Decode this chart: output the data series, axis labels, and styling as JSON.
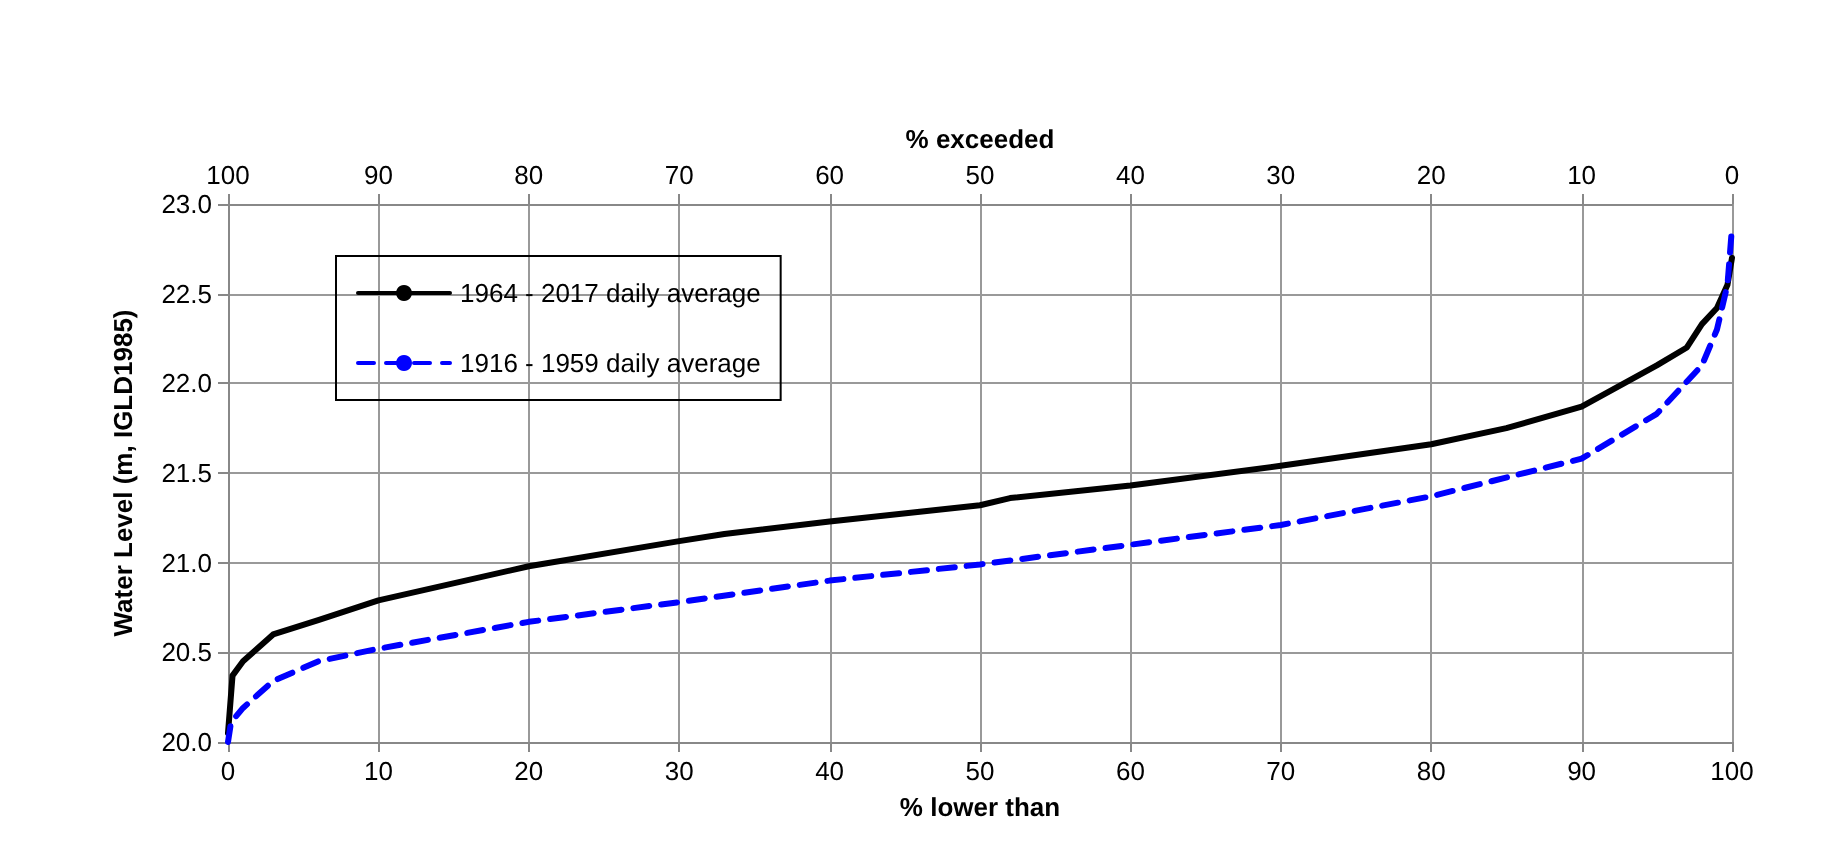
{
  "chart_data": {
    "type": "line",
    "xlabel": "% lower than",
    "x2label": "% exceeded",
    "ylabel": "Water Level (m, IGLD1985)",
    "xlim": [
      0,
      100
    ],
    "xticks": [
      0,
      10,
      20,
      30,
      40,
      50,
      60,
      70,
      80,
      90,
      100
    ],
    "x2lim": [
      100,
      0
    ],
    "x2ticks": [
      100,
      90,
      80,
      70,
      60,
      50,
      40,
      30,
      20,
      10,
      0
    ],
    "ylim": [
      20.0,
      23.0
    ],
    "yticks": [
      {
        "value": 20.0,
        "label": "20.0"
      },
      {
        "value": 20.5,
        "label": "20.5"
      },
      {
        "value": 21.0,
        "label": "21.0"
      },
      {
        "value": 21.5,
        "label": "21.5"
      },
      {
        "value": 22.0,
        "label": "22.0"
      },
      {
        "value": 22.5,
        "label": "22.5"
      },
      {
        "value": 23.0,
        "label": "23.0"
      }
    ],
    "grid": true,
    "legend": "top left",
    "marker": "none",
    "series": [
      {
        "name": "1964 - 2017 daily average",
        "color": "#000000",
        "line_style": "solid",
        "x": [
          0,
          0.3,
          1,
          3,
          6,
          10,
          20,
          30,
          33,
          40,
          50,
          52,
          60,
          70,
          80,
          85,
          90,
          95,
          97,
          98,
          99,
          99.7,
          100
        ],
        "values": [
          20.05,
          20.37,
          20.45,
          20.6,
          20.68,
          20.79,
          20.98,
          21.12,
          21.16,
          21.23,
          21.32,
          21.36,
          21.43,
          21.54,
          21.66,
          21.75,
          21.87,
          22.1,
          22.2,
          22.33,
          22.42,
          22.55,
          22.7
        ]
      },
      {
        "name": "1916 - 1959 daily average",
        "color": "#0000ff",
        "line_style": "dashed",
        "x": [
          0,
          0.2,
          1,
          3,
          6,
          10,
          20,
          30,
          40,
          50,
          60,
          70,
          80,
          90,
          95,
          98,
          99,
          99.7,
          100
        ],
        "values": [
          20.0,
          20.11,
          20.19,
          20.34,
          20.45,
          20.52,
          20.67,
          20.78,
          20.9,
          20.99,
          21.1,
          21.21,
          21.37,
          21.58,
          21.83,
          22.1,
          22.3,
          22.55,
          22.87
        ]
      }
    ]
  }
}
